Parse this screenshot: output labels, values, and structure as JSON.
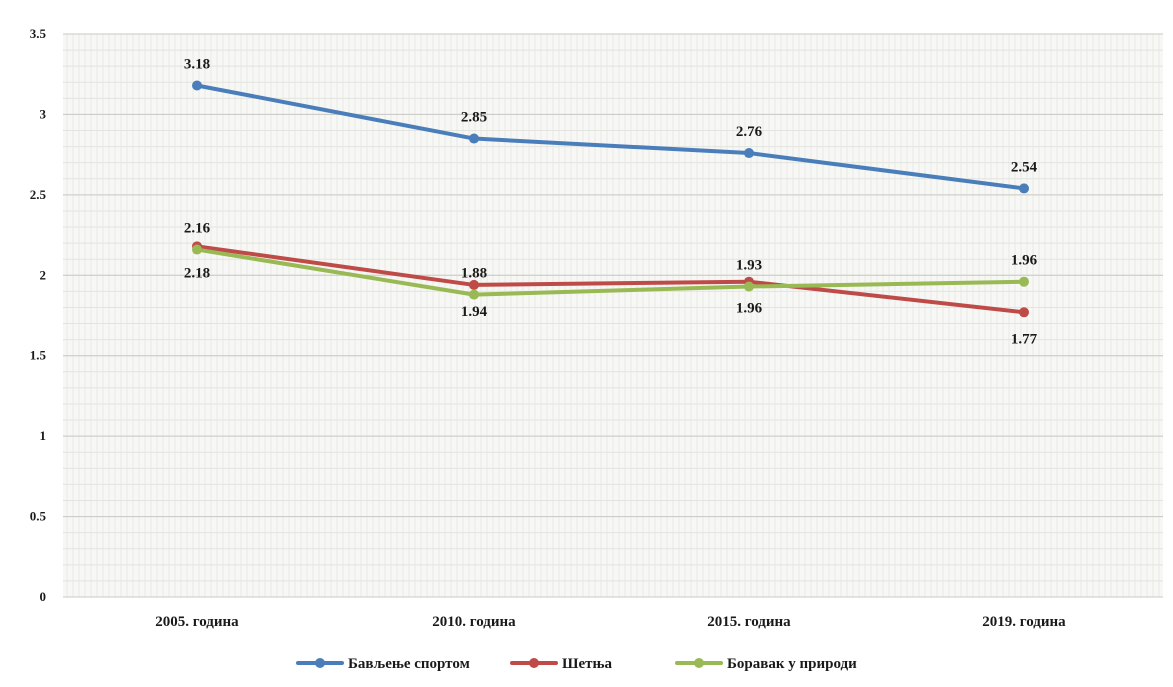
{
  "chart_data": {
    "type": "line",
    "categories": [
      "2005. година",
      "2010. година",
      "2015. година",
      "2019. година"
    ],
    "ylim": [
      0,
      3.5
    ],
    "yticks": [
      "0",
      "0.5",
      "1",
      "1.5",
      "2",
      "2.5",
      "3",
      "3.5"
    ],
    "grid": true,
    "legend_position": "bottom",
    "series": [
      {
        "name": "Бављење спортом",
        "color": "#4a7ebb",
        "values": [
          3.18,
          2.85,
          2.76,
          2.54
        ],
        "labels": [
          "3.18",
          "2.85",
          "2.76",
          "2.54"
        ],
        "label_position": [
          "above",
          "above",
          "above",
          "above"
        ]
      },
      {
        "name": "Шетња",
        "color": "#be4b48",
        "values": [
          2.18,
          1.94,
          1.96,
          1.77
        ],
        "labels": [
          "2.18",
          "1.94",
          "1.96",
          "1.77"
        ],
        "label_position": [
          "below",
          "below",
          "below",
          "below"
        ]
      },
      {
        "name": "Боравак у природи",
        "color": "#98b954",
        "values": [
          2.16,
          1.88,
          1.93,
          1.96
        ],
        "labels": [
          "2.16",
          "1.88",
          "1.93",
          "1.96"
        ],
        "label_position": [
          "above",
          "above",
          "above",
          "above"
        ]
      }
    ]
  }
}
